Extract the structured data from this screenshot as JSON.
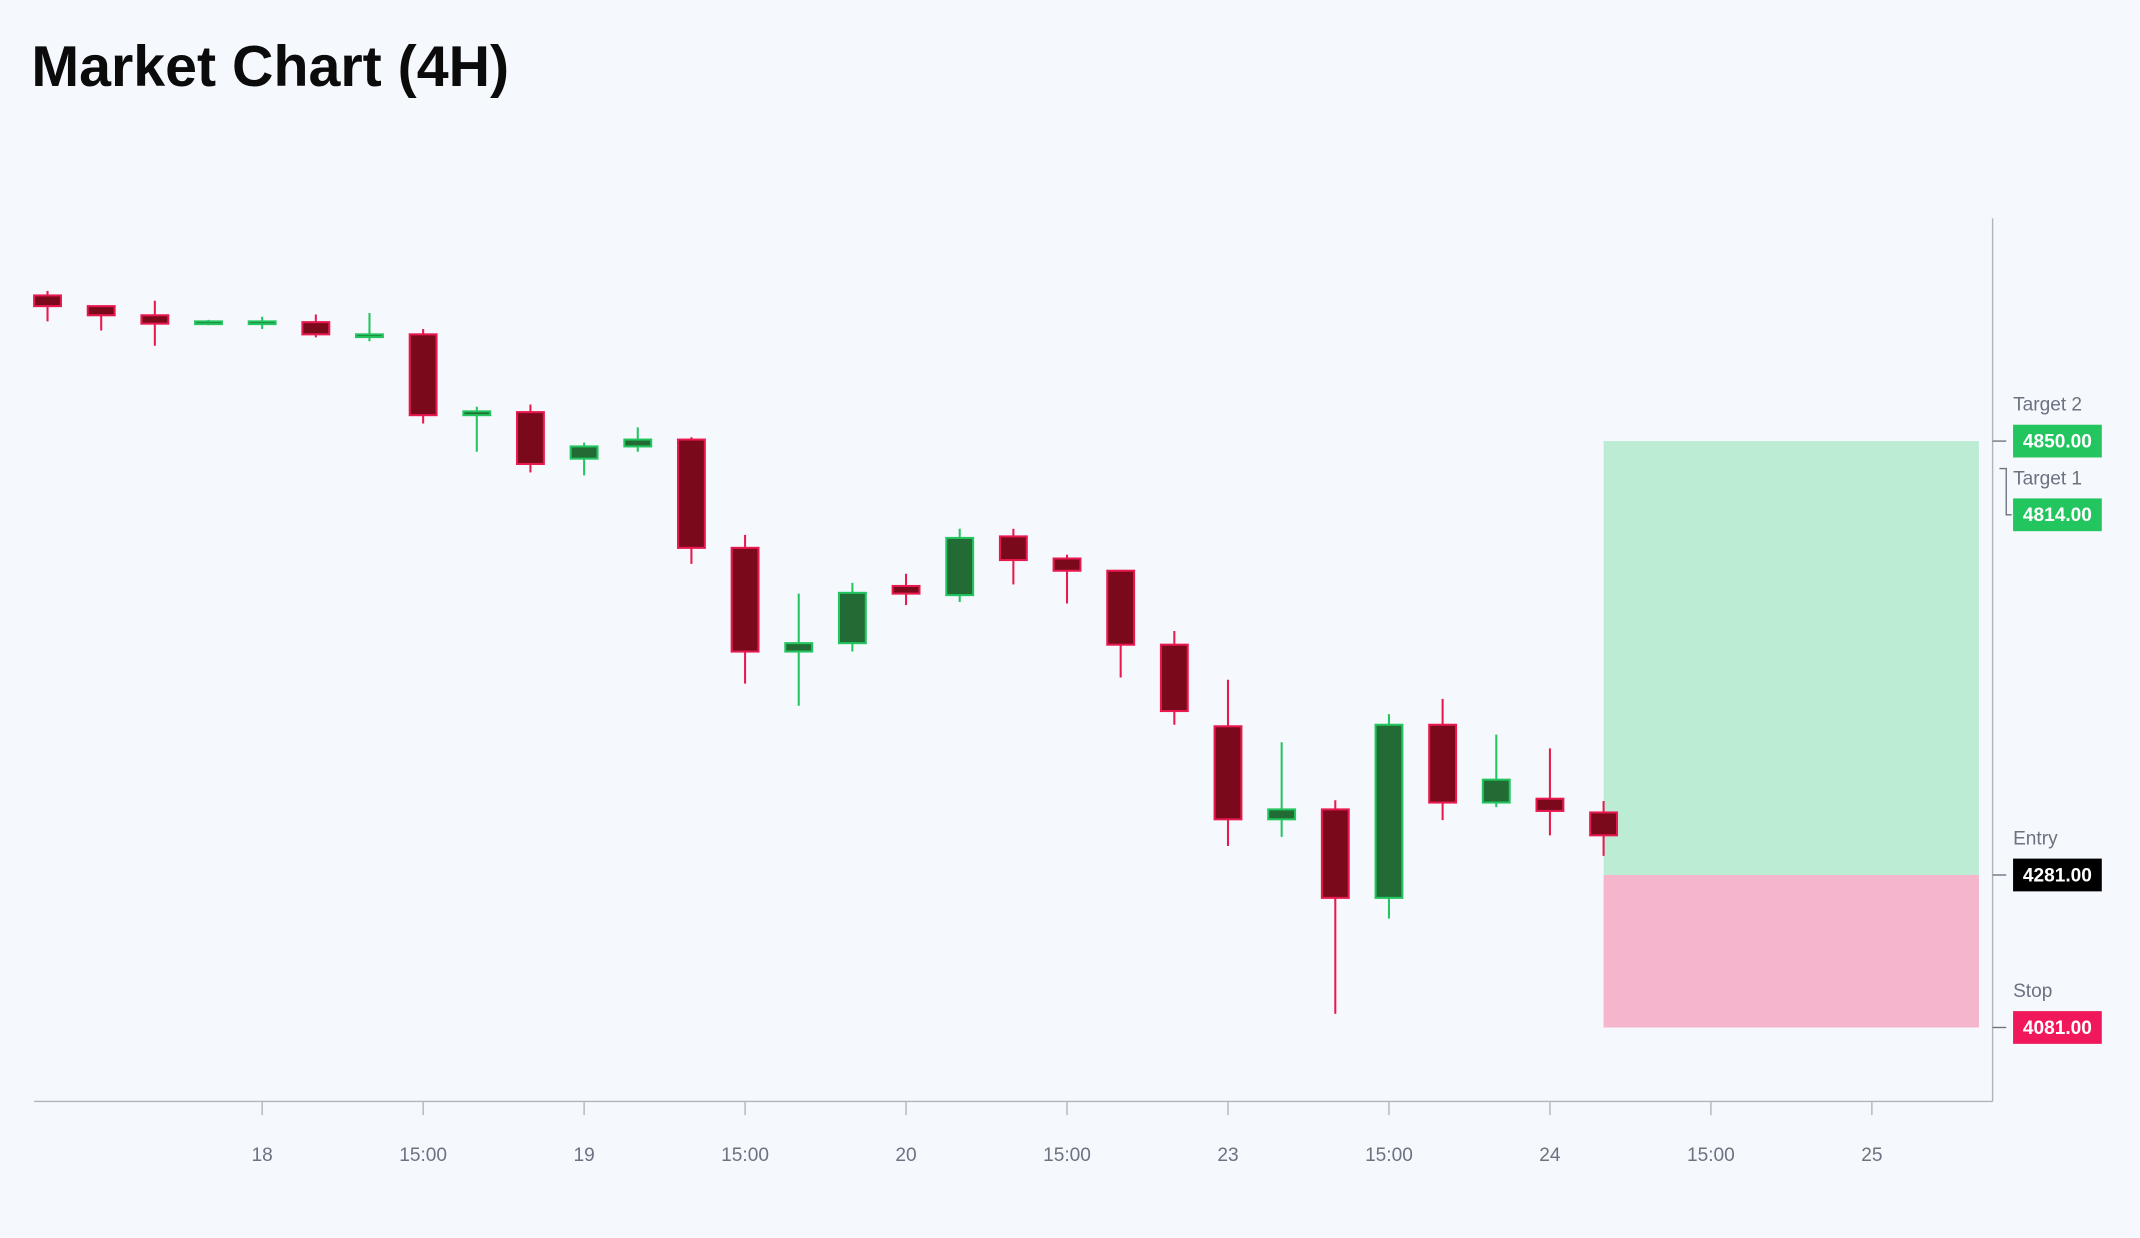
{
  "chart_data": {
    "type": "candlestick",
    "title": "Market Chart (4H)",
    "x": [
      0,
      1,
      2,
      3,
      4,
      5,
      6,
      7,
      8,
      9,
      10,
      11,
      12,
      13,
      14,
      15,
      16,
      17,
      18,
      19,
      20,
      21,
      22,
      23,
      24,
      25,
      26,
      27,
      28,
      29
    ],
    "open": [
      5041,
      5027,
      5015,
      5004,
      5004,
      5006,
      4988,
      4990,
      4884,
      4888,
      4827,
      4843,
      4852,
      4710,
      4574,
      4585,
      4660,
      4648,
      4725,
      4696,
      4680,
      4583,
      4476,
      4354,
      4367,
      4251,
      4478,
      4376,
      4381,
      4363
    ],
    "high": [
      5047,
      5027,
      5034,
      5009,
      5013,
      5016,
      5018,
      4997,
      4895,
      4898,
      4848,
      4868,
      4855,
      4727,
      4650,
      4664,
      4676,
      4735,
      4735,
      4701,
      4680,
      4601,
      4537,
      4455,
      4379,
      4492,
      4512,
      4465,
      4447,
      4378
    ],
    "low": [
      5007,
      4995,
      4975,
      5002,
      4997,
      4986,
      4981,
      4873,
      4836,
      4809,
      4805,
      4836,
      4689,
      4532,
      4503,
      4574,
      4635,
      4639,
      4662,
      4637,
      4540,
      4478,
      4319,
      4331,
      4099,
      4224,
      4353,
      4370,
      4333,
      4306
    ],
    "close": [
      5027,
      5015,
      5004,
      5007,
      5007,
      4990,
      4990,
      4884,
      4889,
      4820,
      4843,
      4852,
      4710,
      4574,
      4585,
      4651,
      4650,
      4723,
      4694,
      4680,
      4583,
      4496,
      4354,
      4367,
      4251,
      4478,
      4376,
      4406,
      4365,
      4333
    ],
    "xlim": [
      -0.25,
      36.25
    ],
    "xticks": [
      {
        "value": 4,
        "label": "18"
      },
      {
        "value": 7,
        "label": "15:00"
      },
      {
        "value": 10,
        "label": "19"
      },
      {
        "value": 13,
        "label": "15:00"
      },
      {
        "value": 16,
        "label": "20"
      },
      {
        "value": 19,
        "label": "15:00"
      },
      {
        "value": 22,
        "label": "23"
      },
      {
        "value": 25,
        "label": "15:00"
      },
      {
        "value": 28,
        "label": "24"
      },
      {
        "value": 31,
        "label": "15:00"
      },
      {
        "value": 34,
        "label": "25"
      }
    ],
    "ylim": [
      3984,
      5142
    ],
    "up_color": "#236b35",
    "up_edge": "#22c55e",
    "down_color": "#7a0a1b",
    "down_edge": "#e8194f",
    "levels": [
      {
        "name": "Target 2",
        "value": 4850,
        "value_label": "4850.00",
        "color": "#22c55e"
      },
      {
        "name": "Target 1",
        "value": 4814,
        "value_label": "4814.00",
        "color": "#22c55e"
      },
      {
        "name": "Entry",
        "value": 4281,
        "value_label": "4281.00",
        "color": "#000000"
      },
      {
        "name": "Stop",
        "value": 4081,
        "value_label": "4081.00",
        "color": "#f0185a"
      }
    ],
    "profit_color": "#bcedd4",
    "loss_color": "#f5b5cd"
  }
}
